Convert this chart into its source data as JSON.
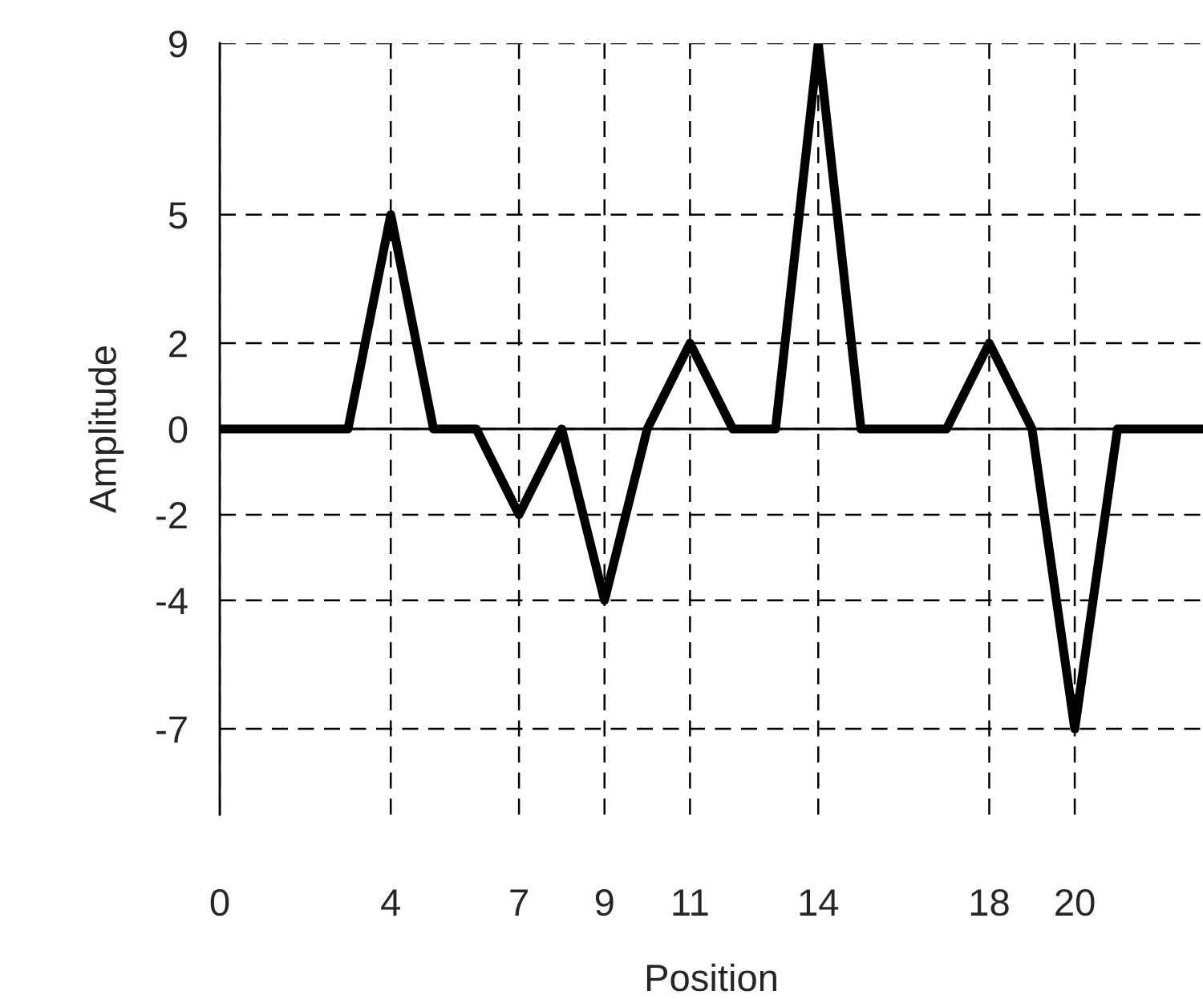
{
  "chart_data": {
    "type": "line",
    "xlabel": "Position",
    "ylabel": "Amplitude",
    "x": [
      0,
      1,
      2,
      3,
      4,
      5,
      6,
      7,
      8,
      9,
      10,
      11,
      12,
      13,
      14,
      15,
      16,
      17,
      18,
      19,
      20,
      21,
      22,
      23
    ],
    "series": [
      {
        "color": "#000000",
        "values": [
          0,
          0,
          0,
          0,
          5,
          0,
          0,
          -2,
          0,
          -4,
          0,
          2,
          0,
          0,
          9,
          0,
          0,
          0,
          2,
          0,
          -7,
          0,
          0,
          0
        ]
      }
    ],
    "xlim": [
      0,
      23
    ],
    "ylim": [
      -9,
      9
    ],
    "xticks": [
      0,
      4,
      7,
      9,
      11,
      14,
      18,
      20
    ],
    "yticks": [
      -7,
      -4,
      -2,
      0,
      2,
      5,
      9
    ],
    "grid": true,
    "marker": "none",
    "line_style": "solid",
    "ref_lines": [
      {
        "axis": "y",
        "value": 0,
        "line_style": "solid",
        "color": "#000000"
      }
    ]
  }
}
